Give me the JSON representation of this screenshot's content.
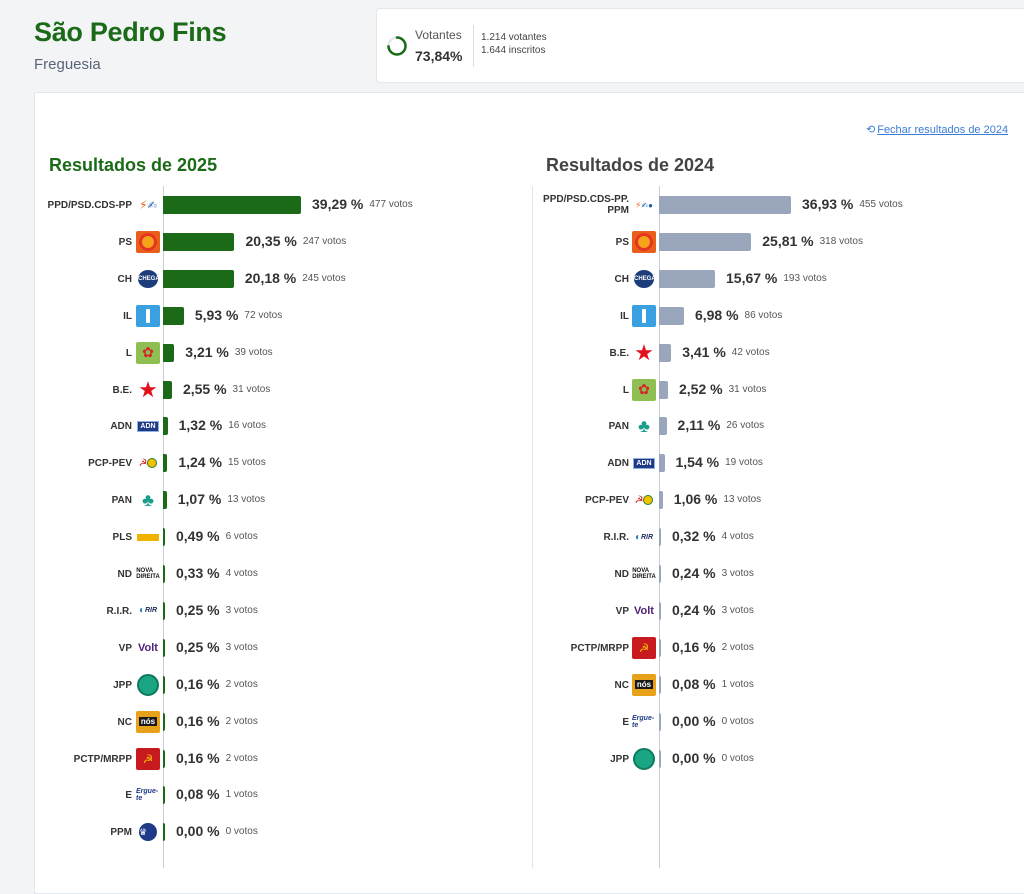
{
  "header": {
    "place_name": "São Pedro Fins",
    "place_type": "Freguesia"
  },
  "turnout": {
    "label": "Votantes",
    "percent": "73,84%",
    "percent_value": 73.84,
    "voters": "1.214 votantes",
    "registered": "1.644 inscritos"
  },
  "close_link": "Fechar resultados de 2024",
  "colors": {
    "bar_2025": "#1b6a17",
    "bar_2024": "#9aa6bc",
    "title_2025": "#1b6a17"
  },
  "chart_data": [
    {
      "type": "bar",
      "orientation": "horizontal",
      "title": "Resultados de 2025",
      "series_color": "#1b6a17",
      "categories": [
        "PPD/PSD.CDS-PP",
        "PS",
        "CH",
        "IL",
        "L",
        "B.E.",
        "ADN",
        "PCP-PEV",
        "PAN",
        "PLS",
        "ND",
        "R.I.R.",
        "VP",
        "JPP",
        "NC",
        "PCTP/MRPP",
        "E",
        "PPM"
      ],
      "values": [
        39.29,
        20.35,
        20.18,
        5.93,
        3.21,
        2.55,
        1.32,
        1.24,
        1.07,
        0.49,
        0.33,
        0.25,
        0.25,
        0.16,
        0.16,
        0.16,
        0.08,
        0.0
      ],
      "percent_labels": [
        "39,29 %",
        "20,35 %",
        "20,18 %",
        "5,93 %",
        "3,21 %",
        "2,55 %",
        "1,32 %",
        "1,24 %",
        "1,07 %",
        "0,49 %",
        "0,33 %",
        "0,25 %",
        "0,25 %",
        "0,16 %",
        "0,16 %",
        "0,16 %",
        "0,08 %",
        "0,00 %"
      ],
      "vote_labels": [
        "477 votos",
        "247 votos",
        "245 votos",
        "72 votos",
        "39 votos",
        "31 votos",
        "16 votos",
        "15 votos",
        "13 votos",
        "6 votos",
        "4 votos",
        "3 votos",
        "3 votos",
        "2 votos",
        "2 votos",
        "2 votos",
        "1 votos",
        "0 votos"
      ],
      "logos": [
        "ppd-cds-logo",
        "ps-logo",
        "ch-logo",
        "il-logo",
        "livre-logo",
        "be-logo",
        "adn-logo",
        "pcp-pev-logo",
        "pan-logo",
        "pls-logo",
        "nd-logo",
        "rir-logo",
        "volt-logo",
        "jpp-logo",
        "nos-logo",
        "pctp-logo",
        "ergue-te-logo",
        "ppm-logo"
      ]
    },
    {
      "type": "bar",
      "orientation": "horizontal",
      "title": "Resultados de 2024",
      "series_color": "#9aa6bc",
      "categories": [
        "PPD/PSD.CDS-PP.PPM",
        "PS",
        "CH",
        "IL",
        "B.E.",
        "L",
        "PAN",
        "ADN",
        "PCP-PEV",
        "R.I.R.",
        "ND",
        "VP",
        "PCTP/MRPP",
        "NC",
        "E",
        "JPP"
      ],
      "values": [
        36.93,
        25.81,
        15.67,
        6.98,
        3.41,
        2.52,
        2.11,
        1.54,
        1.06,
        0.32,
        0.24,
        0.24,
        0.16,
        0.08,
        0.0,
        0.0
      ],
      "percent_labels": [
        "36,93 %",
        "25,81 %",
        "15,67 %",
        "6,98 %",
        "3,41 %",
        "2,52 %",
        "2,11 %",
        "1,54 %",
        "1,06 %",
        "0,32 %",
        "0,24 %",
        "0,24 %",
        "0,16 %",
        "0,08 %",
        "0,00 %",
        "0,00 %"
      ],
      "vote_labels": [
        "455 votos",
        "318 votos",
        "193 votos",
        "86 votos",
        "42 votos",
        "31 votos",
        "26 votos",
        "19 votos",
        "13 votos",
        "4 votos",
        "3 votos",
        "3 votos",
        "2 votos",
        "1 votos",
        "0 votos",
        "0 votos"
      ],
      "logos": [
        "ad-logo",
        "ps-logo",
        "ch-logo",
        "il-logo",
        "be-logo",
        "livre-logo",
        "pan-logo",
        "adn-logo",
        "pcp-pev-logo",
        "rir-logo",
        "nd-logo",
        "volt-logo",
        "pctp-logo",
        "nos-logo",
        "ergue-te-logo",
        "jpp-logo"
      ]
    }
  ]
}
